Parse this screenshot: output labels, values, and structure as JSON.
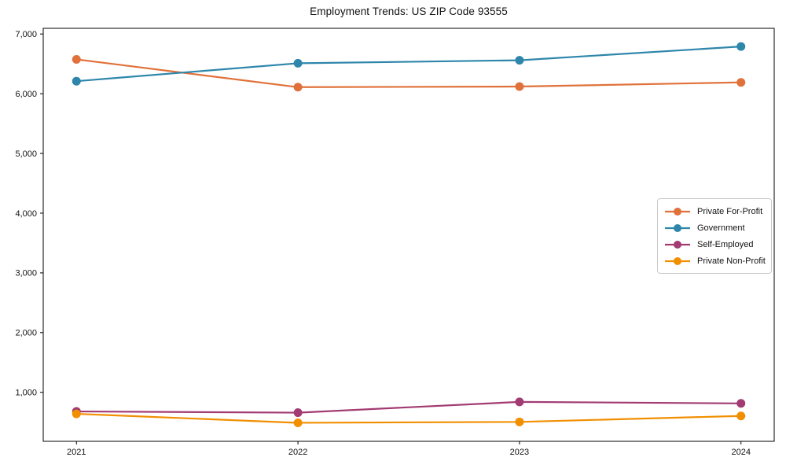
{
  "chart_data": {
    "type": "line",
    "title": "Employment Trends: US ZIP Code 93555",
    "x": [
      2021,
      2022,
      2023,
      2024
    ],
    "xtick_labels": [
      "2021",
      "2022",
      "2023",
      "2024"
    ],
    "yticks": [
      1000,
      2000,
      3000,
      4000,
      5000,
      6000,
      7000
    ],
    "ytick_labels": [
      "1,000",
      "2,000",
      "3,000",
      "4,000",
      "5,000",
      "6,000",
      "7,000"
    ],
    "xlim": [
      2020.85,
      2024.15
    ],
    "ylim": [
      180,
      7095
    ],
    "grid": false,
    "legend_position": "center-right",
    "axis_color": "#000000",
    "tick_label_color": "#111111",
    "series": [
      {
        "name": "Private For-Profit",
        "color": "#E0713A",
        "values": [
          6575,
          6110,
          6120,
          6190
        ]
      },
      {
        "name": "Government",
        "color": "#2E86AB",
        "values": [
          6210,
          6510,
          6560,
          6790
        ]
      },
      {
        "name": "Self-Employed",
        "color": "#A23B72",
        "values": [
          680,
          660,
          840,
          815
        ]
      },
      {
        "name": "Private Non-Profit",
        "color": "#F18F01",
        "values": [
          640,
          490,
          505,
          605
        ]
      }
    ]
  }
}
